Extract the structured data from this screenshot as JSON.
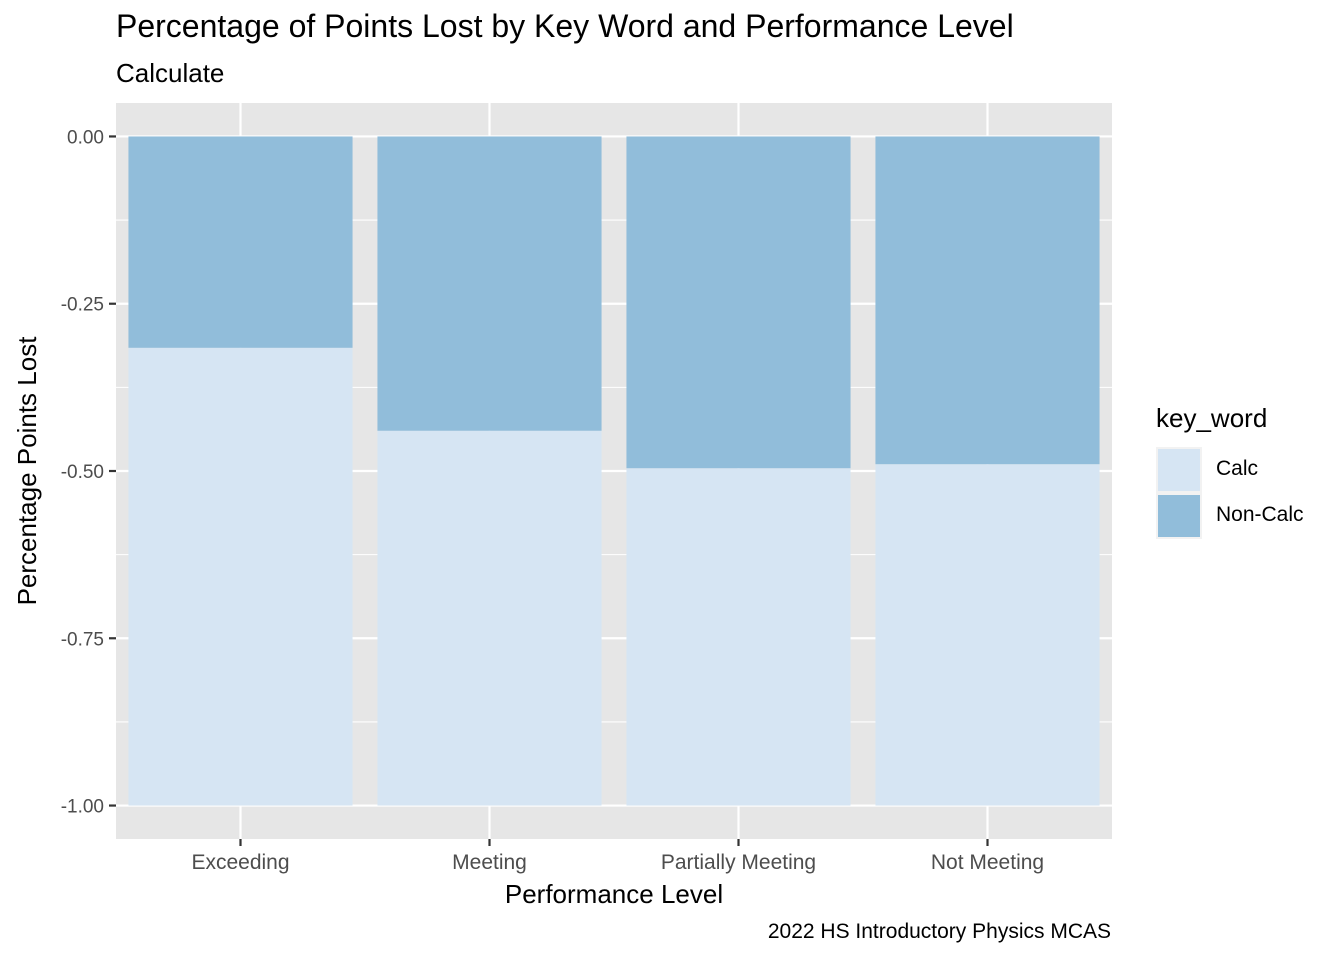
{
  "chart_data": {
    "type": "bar",
    "stacked": true,
    "title": "Percentage of Points Lost by Key Word and Performance Level",
    "subtitle": "Calculate",
    "caption": "2022 HS Introductory Physics MCAS",
    "xlabel": "Performance Level",
    "ylabel": "Percentage Points Lost",
    "categories": [
      "Exceeding",
      "Meeting",
      "Partially Meeting",
      "Not Meeting"
    ],
    "ylim": [
      -1.05,
      0.05
    ],
    "yticks": [
      0.0,
      -0.25,
      -0.5,
      -0.75,
      -1.0
    ],
    "ytick_labels": [
      "0.00",
      "-0.25",
      "-0.50",
      "-0.75",
      "-1.00"
    ],
    "grid": true,
    "legend": {
      "title": "key_word",
      "position": "right"
    },
    "series": [
      {
        "name": "Calc",
        "color": "#d6e5f3",
        "values": [
          -0.684,
          -0.56,
          -0.504,
          -0.51
        ]
      },
      {
        "name": "Non-Calc",
        "color": "#91bdda",
        "values": [
          -0.316,
          -0.44,
          -0.496,
          -0.49
        ]
      }
    ],
    "panel_background": "#e6e6e6",
    "grid_color": "#ffffff"
  }
}
